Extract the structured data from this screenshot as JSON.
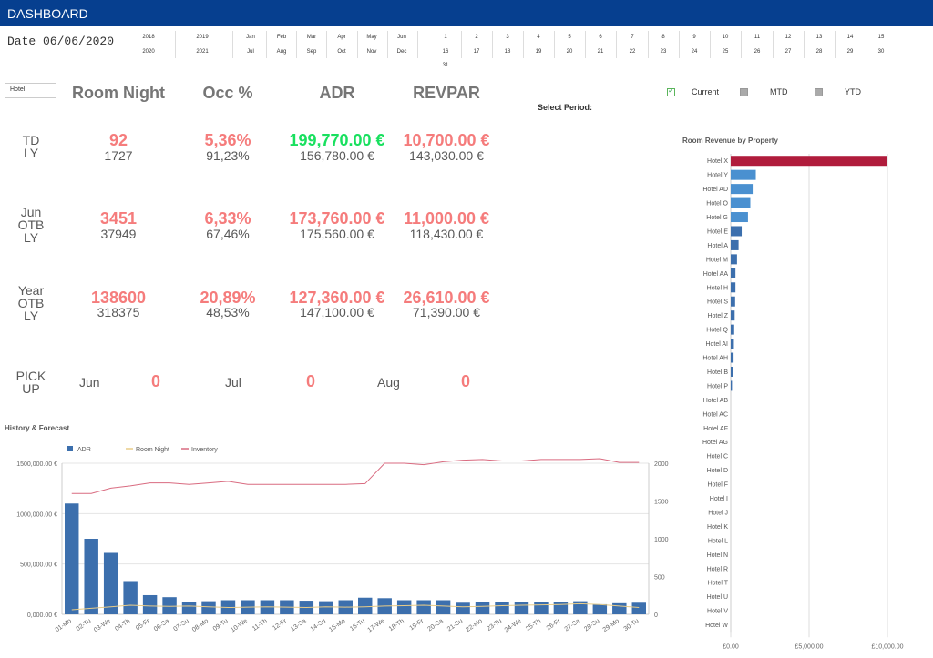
{
  "header": {
    "title": "DASHBOARD"
  },
  "date_label": "Date 06/06/2020",
  "filters": {
    "years_top": [
      "2018",
      "2019"
    ],
    "years_bottom": [
      "2020",
      "2021"
    ],
    "months_top": [
      "Jan",
      "Feb",
      "Mar",
      "Apr",
      "May",
      "Jun"
    ],
    "months_bottom": [
      "Jul",
      "Aug",
      "Sep",
      "Oct",
      "Nov",
      "Dec"
    ],
    "days_row1": [
      "1",
      "2",
      "3",
      "4",
      "5",
      "6",
      "7",
      "8",
      "9",
      "10",
      "11",
      "12",
      "13",
      "14",
      "15"
    ],
    "days_row2": [
      "16",
      "17",
      "18",
      "19",
      "20",
      "21",
      "22",
      "23",
      "24",
      "25",
      "26",
      "27",
      "28",
      "29",
      "30"
    ],
    "days_row3": [
      "31"
    ]
  },
  "hotel_select": {
    "value": "Hotel"
  },
  "kpi_headers": [
    "Room Night",
    "Occ %",
    "ADR",
    "REVPAR"
  ],
  "select_period": {
    "label": "Select Period:",
    "options": [
      {
        "label": "Current",
        "checked": true
      },
      {
        "label": "MTD",
        "checked": false
      },
      {
        "label": "YTD",
        "checked": false
      }
    ]
  },
  "kpi_rows": [
    {
      "label": "TD\nLY",
      "room_night": "92",
      "room_night_ly": "1727",
      "occ": "5,36%",
      "occ_ly": "91,23%",
      "adr": "199,770.00 €",
      "adr_ly": "156,780.00 €",
      "revpar": "10,700.00 €",
      "revpar_ly": "143,030.00 €"
    },
    {
      "label": "Jun\nOTB\nLY",
      "room_night": "3451",
      "room_night_ly": "37949",
      "occ": "6,33%",
      "occ_ly": "67,46%",
      "adr": "173,760.00 €",
      "adr_ly": "175,560.00 €",
      "revpar": "11,000.00 €",
      "revpar_ly": "118,430.00 €"
    },
    {
      "label": "Year\nOTB\nLY",
      "room_night": "138600",
      "room_night_ly": "318375",
      "occ": "20,89%",
      "occ_ly": "48,53%",
      "adr": "127,360.00 €",
      "adr_ly": "147,100.00 €",
      "revpar": "26,610.00 €",
      "revpar_ly": "71,390.00 €"
    }
  ],
  "pickup": {
    "label": "PICK\nUP",
    "items": [
      {
        "month": "Jun",
        "value": "0"
      },
      {
        "month": "Jul",
        "value": "0"
      },
      {
        "month": "Aug",
        "value": "0"
      }
    ]
  },
  "colors": {
    "header": "#063f8f",
    "kpi_red": "#f57c7c",
    "kpi_green": "#19e05f",
    "bar": "#3c6fad",
    "highlight": "#b01c3c",
    "room_night_line": "#e8cc88",
    "inventory_line": "#d96b80"
  },
  "chart_data": [
    {
      "type": "bar",
      "title": "History & Forecast",
      "legend": [
        "ADR",
        "Room Night",
        "Inventory"
      ],
      "legend_placement": "top-left",
      "categories": [
        "01-Mo",
        "02-Tu",
        "03-We",
        "04-Th",
        "05-Fr",
        "06-Sa",
        "07-Su",
        "08-Mo",
        "09-Tu",
        "10-We",
        "11-Th",
        "12-Fr",
        "13-Sa",
        "14-Su",
        "15-Mo",
        "16-Tu",
        "17-We",
        "18-Th",
        "19-Fr",
        "20-Sa",
        "21-Su",
        "22-Mo",
        "23-Tu",
        "24-We",
        "25-Th",
        "26-Fr",
        "27-Sa",
        "28-Su",
        "29-Mo",
        "30-Tu"
      ],
      "series": [
        {
          "name": "ADR",
          "axis": "left",
          "type": "bar",
          "values": [
            1100000,
            750000,
            610000,
            330000,
            190000,
            170000,
            120000,
            130000,
            140000,
            140000,
            140000,
            140000,
            135000,
            130000,
            140000,
            165000,
            160000,
            140000,
            140000,
            140000,
            115000,
            125000,
            125000,
            125000,
            120000,
            120000,
            130000,
            100000,
            110000,
            115000
          ]
        },
        {
          "name": "Room Night",
          "axis": "right",
          "type": "line",
          "values": [
            60,
            80,
            100,
            120,
            110,
            105,
            110,
            100,
            90,
            95,
            100,
            95,
            90,
            100,
            95,
            100,
            110,
            115,
            120,
            110,
            100,
            105,
            115,
            120,
            125,
            130,
            140,
            130,
            110,
            90
          ]
        },
        {
          "name": "Inventory",
          "axis": "right",
          "type": "line",
          "values": [
            1600,
            1600,
            1670,
            1700,
            1740,
            1740,
            1720,
            1740,
            1760,
            1720,
            1720,
            1720,
            1720,
            1720,
            1720,
            1730,
            2000,
            2000,
            1980,
            2020,
            2040,
            2050,
            2030,
            2030,
            2050,
            2050,
            2050,
            2060,
            2010,
            2010
          ]
        }
      ],
      "yticks_left": [
        "0,000.00 €",
        "500,000.00 €",
        "1000,000.00 €",
        "1500,000.00 €"
      ],
      "ylim_left": [
        0,
        1500000
      ],
      "yticks_right": [
        "0",
        "500",
        "1000",
        "1500",
        "2000"
      ],
      "ylim_right": [
        0,
        2000
      ],
      "grid": true
    },
    {
      "type": "bar",
      "orientation": "horizontal",
      "title": "Room Revenue by Property",
      "categories": [
        "Hotel  X",
        "Hotel  Y",
        "Hotel  AD",
        "Hotel  O",
        "Hotel  G",
        "Hotel  E",
        "Hotel  A",
        "Hotel  M",
        "Hotel  AA",
        "Hotel  H",
        "Hotel  S",
        "Hotel  Z",
        "Hotel  Q",
        "Hotel  AI",
        "Hotel  AH",
        "Hotel  B",
        "Hotel  P",
        "Hotel  AB",
        "Hotel  AC",
        "Hotel  AF",
        "Hotel  AG",
        "Hotel  C",
        "Hotel  D",
        "Hotel  F",
        "Hotel  I",
        "Hotel  J",
        "Hotel  K",
        "Hotel  L",
        "Hotel  N",
        "Hotel  R",
        "Hotel  T",
        "Hotel  U",
        "Hotel  V",
        "Hotel  W"
      ],
      "values": [
        10000,
        1600,
        1400,
        1250,
        1100,
        700,
        500,
        400,
        300,
        300,
        280,
        250,
        220,
        200,
        180,
        150,
        80,
        0,
        0,
        0,
        0,
        0,
        0,
        0,
        0,
        0,
        0,
        0,
        0,
        0,
        0,
        0,
        0,
        0
      ],
      "highlight_index": 0,
      "xticks": [
        "£0.00",
        "£5,000.00",
        "£10,000.00"
      ],
      "xlim": [
        0,
        10000
      ],
      "grid": true
    }
  ]
}
